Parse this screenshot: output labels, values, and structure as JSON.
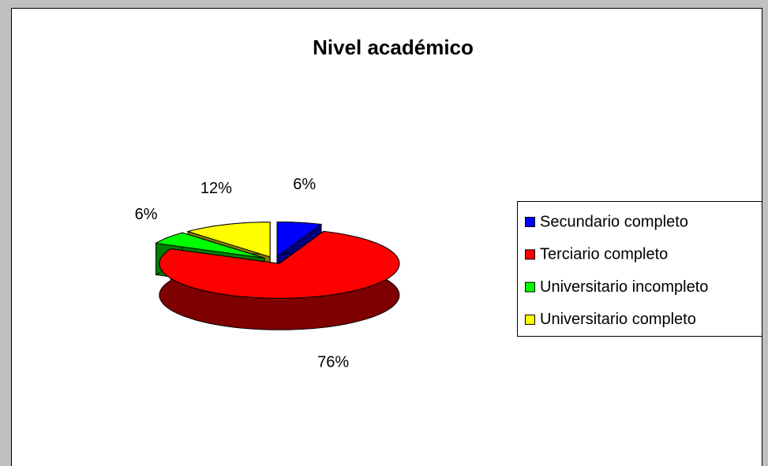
{
  "chart_data": {
    "type": "pie",
    "title": "Nivel académico",
    "categories": [
      "Secundario completo",
      "Terciario completo",
      "Universitario incompleto",
      "Universitario completo"
    ],
    "values": [
      6,
      76,
      6,
      12
    ],
    "value_labels": [
      "6%",
      "76%",
      "6%",
      "12%"
    ],
    "colors": [
      "#0000ff",
      "#ff0000",
      "#00ff00",
      "#ffff00"
    ],
    "legend": "right"
  }
}
